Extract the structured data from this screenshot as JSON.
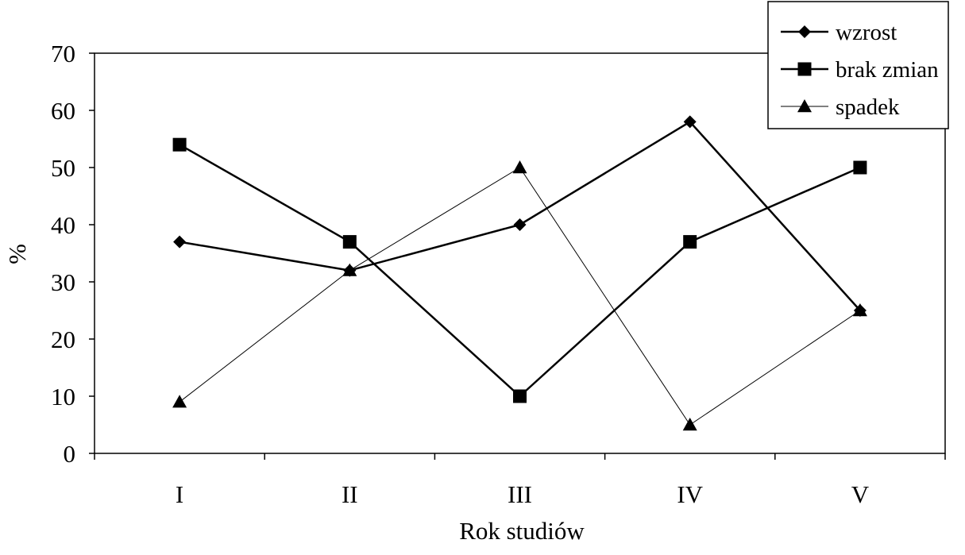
{
  "chart_data": {
    "type": "line",
    "categories": [
      "I",
      "II",
      "III",
      "IV",
      "V"
    ],
    "series": [
      {
        "name": "wzrost",
        "values": [
          37,
          32,
          40,
          58,
          25
        ],
        "marker": "diamond",
        "line": "solid",
        "color": "#000000"
      },
      {
        "name": "brak zmian",
        "values": [
          54,
          37,
          10,
          37,
          50
        ],
        "marker": "square",
        "line": "solid",
        "color": "#000000"
      },
      {
        "name": "spadek",
        "values": [
          9,
          32,
          50,
          5,
          25
        ],
        "marker": "triangle",
        "line": "thin",
        "color": "#000000"
      }
    ],
    "xlabel": "Rok studiów",
    "ylabel": "%",
    "ylim": [
      0,
      70
    ],
    "yticks": [
      "0",
      "10",
      "20",
      "30",
      "40",
      "50",
      "60",
      "70"
    ],
    "grid": false,
    "legend_position": "top-right"
  }
}
